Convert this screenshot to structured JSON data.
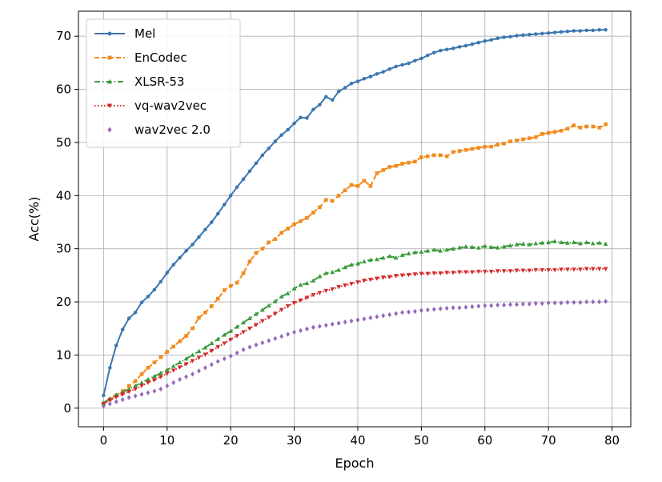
{
  "chart_data": {
    "type": "line",
    "xlabel": "Epoch",
    "ylabel": "Acc(%)",
    "xlim": [
      -3.95,
      82.95
    ],
    "ylim": [
      -3.5,
      74.7
    ],
    "xticks": [
      0,
      10,
      20,
      30,
      40,
      50,
      60,
      70,
      80
    ],
    "yticks": [
      0,
      10,
      20,
      30,
      40,
      50,
      60,
      70
    ],
    "grid": true,
    "legend_position": "upper-left",
    "series": [
      {
        "name": "Mel",
        "color": "#3a76b0",
        "marker": "circle",
        "linestyle": "solid",
        "x": [
          0,
          1,
          2,
          3,
          4,
          5,
          6,
          7,
          8,
          9,
          10,
          11,
          12,
          13,
          14,
          15,
          16,
          17,
          18,
          19,
          20,
          21,
          22,
          23,
          24,
          25,
          26,
          27,
          28,
          29,
          30,
          31,
          32,
          33,
          34,
          35,
          36,
          37,
          38,
          39,
          40,
          41,
          42,
          43,
          44,
          45,
          46,
          47,
          48,
          49,
          50,
          51,
          52,
          53,
          54,
          55,
          56,
          57,
          58,
          59,
          60,
          61,
          62,
          63,
          64,
          65,
          66,
          67,
          68,
          69,
          70,
          71,
          72,
          73,
          74,
          75,
          76,
          77,
          78,
          79
        ],
        "y": [
          2.4,
          7.6,
          11.8,
          14.8,
          16.9,
          18.0,
          19.9,
          21.0,
          22.3,
          23.8,
          25.5,
          27.0,
          28.3,
          29.6,
          30.8,
          32.2,
          33.6,
          35.0,
          36.6,
          38.3,
          40.0,
          41.6,
          43.1,
          44.6,
          46.1,
          47.6,
          48.9,
          50.2,
          51.4,
          52.4,
          53.6,
          54.7,
          54.6,
          56.2,
          57.1,
          58.6,
          58.0,
          59.6,
          60.3,
          61.1,
          61.5,
          62.0,
          62.4,
          62.9,
          63.3,
          63.8,
          64.3,
          64.6,
          64.9,
          65.4,
          65.8,
          66.4,
          66.9,
          67.3,
          67.5,
          67.7,
          68.0,
          68.2,
          68.5,
          68.8,
          69.1,
          69.3,
          69.6,
          69.8,
          69.9,
          70.1,
          70.2,
          70.3,
          70.4,
          70.5,
          70.6,
          70.7,
          70.8,
          70.9,
          71.0,
          71.0,
          71.1,
          71.1,
          71.2,
          71.2
        ]
      },
      {
        "name": "EnCodec",
        "color": "#f28a1c",
        "marker": "square",
        "linestyle": "dashed",
        "x": [
          0,
          1,
          2,
          3,
          4,
          5,
          6,
          7,
          8,
          9,
          10,
          11,
          12,
          13,
          14,
          15,
          16,
          17,
          18,
          19,
          20,
          21,
          22,
          23,
          24,
          25,
          26,
          27,
          28,
          29,
          30,
          31,
          32,
          33,
          34,
          35,
          36,
          37,
          38,
          39,
          40,
          41,
          42,
          43,
          44,
          45,
          46,
          47,
          48,
          49,
          50,
          51,
          52,
          53,
          54,
          55,
          56,
          57,
          58,
          59,
          60,
          61,
          62,
          63,
          64,
          65,
          66,
          67,
          68,
          69,
          70,
          71,
          72,
          73,
          74,
          75,
          76,
          77,
          78,
          79
        ],
        "y": [
          0.8,
          1.6,
          2.4,
          3.2,
          4.2,
          5.1,
          6.4,
          7.6,
          8.6,
          9.6,
          10.6,
          11.6,
          12.6,
          13.6,
          15.0,
          17.0,
          18.0,
          19.2,
          20.6,
          22.2,
          23.0,
          23.6,
          25.4,
          27.6,
          29.2,
          30.0,
          31.2,
          31.8,
          33.0,
          33.8,
          34.6,
          35.2,
          35.8,
          36.8,
          37.8,
          39.2,
          39.0,
          40.0,
          41.0,
          42.0,
          41.8,
          42.8,
          41.8,
          44.2,
          44.8,
          45.4,
          45.6,
          46.0,
          46.2,
          46.4,
          47.2,
          47.4,
          47.6,
          47.6,
          47.4,
          48.2,
          48.4,
          48.6,
          48.8,
          49.0,
          49.2,
          49.2,
          49.6,
          49.8,
          50.2,
          50.4,
          50.6,
          50.8,
          51.0,
          51.6,
          51.8,
          52.0,
          52.2,
          52.6,
          53.2,
          52.8,
          53.0,
          53.0,
          52.8,
          53.4
        ]
      },
      {
        "name": "XLSR-53",
        "color": "#3a9a3a",
        "marker": "triangle-up",
        "linestyle": "dashdot",
        "x": [
          0,
          1,
          2,
          3,
          4,
          5,
          6,
          7,
          8,
          9,
          10,
          11,
          12,
          13,
          14,
          15,
          16,
          17,
          18,
          19,
          20,
          21,
          22,
          23,
          24,
          25,
          26,
          27,
          28,
          29,
          30,
          31,
          32,
          33,
          34,
          35,
          36,
          37,
          38,
          39,
          40,
          41,
          42,
          43,
          44,
          45,
          46,
          47,
          48,
          49,
          50,
          51,
          52,
          53,
          54,
          55,
          56,
          57,
          58,
          59,
          60,
          61,
          62,
          63,
          64,
          65,
          66,
          67,
          68,
          69,
          70,
          71,
          72,
          73,
          74,
          75,
          76,
          77,
          78,
          79
        ],
        "y": [
          1.0,
          1.8,
          2.5,
          3.0,
          3.6,
          4.2,
          4.8,
          5.4,
          6.0,
          6.6,
          7.2,
          7.9,
          8.6,
          9.3,
          10.0,
          10.7,
          11.4,
          12.2,
          13.0,
          13.8,
          14.5,
          15.3,
          16.1,
          16.9,
          17.7,
          18.5,
          19.3,
          20.1,
          21.0,
          21.6,
          22.5,
          23.2,
          23.5,
          24.0,
          24.8,
          25.4,
          25.6,
          26.0,
          26.5,
          27.0,
          27.2,
          27.6,
          27.9,
          28.0,
          28.3,
          28.6,
          28.3,
          28.8,
          29.1,
          29.3,
          29.4,
          29.6,
          29.8,
          29.6,
          29.8,
          30.0,
          30.2,
          30.4,
          30.3,
          30.2,
          30.5,
          30.3,
          30.2,
          30.4,
          30.6,
          30.8,
          30.9,
          30.8,
          31.0,
          31.1,
          31.2,
          31.4,
          31.2,
          31.1,
          31.2,
          31.0,
          31.2,
          31.0,
          31.1,
          30.9
        ]
      },
      {
        "name": "vq-wav2vec",
        "color": "#d62728",
        "marker": "triangle-down",
        "linestyle": "dotted",
        "x": [
          0,
          1,
          2,
          3,
          4,
          5,
          6,
          7,
          8,
          9,
          10,
          11,
          12,
          13,
          14,
          15,
          16,
          17,
          18,
          19,
          20,
          21,
          22,
          23,
          24,
          25,
          26,
          27,
          28,
          29,
          30,
          31,
          32,
          33,
          34,
          35,
          36,
          37,
          38,
          39,
          40,
          41,
          42,
          43,
          44,
          45,
          46,
          47,
          48,
          49,
          50,
          51,
          52,
          53,
          54,
          55,
          56,
          57,
          58,
          59,
          60,
          61,
          62,
          63,
          64,
          65,
          66,
          67,
          68,
          69,
          70,
          71,
          72,
          73,
          74,
          75,
          76,
          77,
          78,
          79
        ],
        "y": [
          0.8,
          1.5,
          2.1,
          2.6,
          3.1,
          3.6,
          4.2,
          4.8,
          5.3,
          5.9,
          6.5,
          7.1,
          7.7,
          8.3,
          8.9,
          9.5,
          10.1,
          10.8,
          11.5,
          12.2,
          12.9,
          13.6,
          14.3,
          15.0,
          15.7,
          16.4,
          17.1,
          17.8,
          18.5,
          19.2,
          19.8,
          20.3,
          20.8,
          21.3,
          21.7,
          22.1,
          22.4,
          22.8,
          23.1,
          23.4,
          23.7,
          24.0,
          24.2,
          24.4,
          24.6,
          24.7,
          24.9,
          25.0,
          25.1,
          25.2,
          25.3,
          25.3,
          25.4,
          25.4,
          25.5,
          25.5,
          25.6,
          25.6,
          25.6,
          25.7,
          25.7,
          25.7,
          25.8,
          25.8,
          25.8,
          25.9,
          25.9,
          25.9,
          26.0,
          26.0,
          26.0,
          26.0,
          26.1,
          26.1,
          26.1,
          26.1,
          26.2,
          26.2,
          26.2,
          26.2
        ]
      },
      {
        "name": "wav2vec 2.0",
        "color": "#9467bd",
        "marker": "diamond",
        "linestyle": "none",
        "x": [
          0,
          1,
          2,
          3,
          4,
          5,
          6,
          7,
          8,
          9,
          10,
          11,
          12,
          13,
          14,
          15,
          16,
          17,
          18,
          19,
          20,
          21,
          22,
          23,
          24,
          25,
          26,
          27,
          28,
          29,
          30,
          31,
          32,
          33,
          34,
          35,
          36,
          37,
          38,
          39,
          40,
          41,
          42,
          43,
          44,
          45,
          46,
          47,
          48,
          49,
          50,
          51,
          52,
          53,
          54,
          55,
          56,
          57,
          58,
          59,
          60,
          61,
          62,
          63,
          64,
          65,
          66,
          67,
          68,
          69,
          70,
          71,
          72,
          73,
          74,
          75,
          76,
          77,
          78,
          79
        ],
        "y": [
          0.4,
          0.8,
          1.2,
          1.6,
          2.0,
          2.3,
          2.6,
          2.9,
          3.2,
          3.6,
          4.2,
          4.8,
          5.4,
          5.9,
          6.4,
          7.0,
          7.6,
          8.2,
          8.8,
          9.3,
          9.8,
          10.4,
          11.0,
          11.5,
          11.9,
          12.3,
          12.7,
          13.1,
          13.5,
          13.9,
          14.3,
          14.6,
          14.9,
          15.2,
          15.4,
          15.6,
          15.8,
          16.0,
          16.2,
          16.4,
          16.6,
          16.8,
          17.0,
          17.2,
          17.4,
          17.6,
          17.8,
          18.0,
          18.1,
          18.2,
          18.4,
          18.5,
          18.6,
          18.7,
          18.8,
          18.9,
          18.9,
          19.0,
          19.1,
          19.2,
          19.3,
          19.3,
          19.4,
          19.4,
          19.5,
          19.5,
          19.6,
          19.6,
          19.7,
          19.7,
          19.8,
          19.8,
          19.8,
          19.9,
          19.9,
          19.9,
          20.0,
          20.0,
          20.0,
          20.1
        ]
      }
    ]
  }
}
